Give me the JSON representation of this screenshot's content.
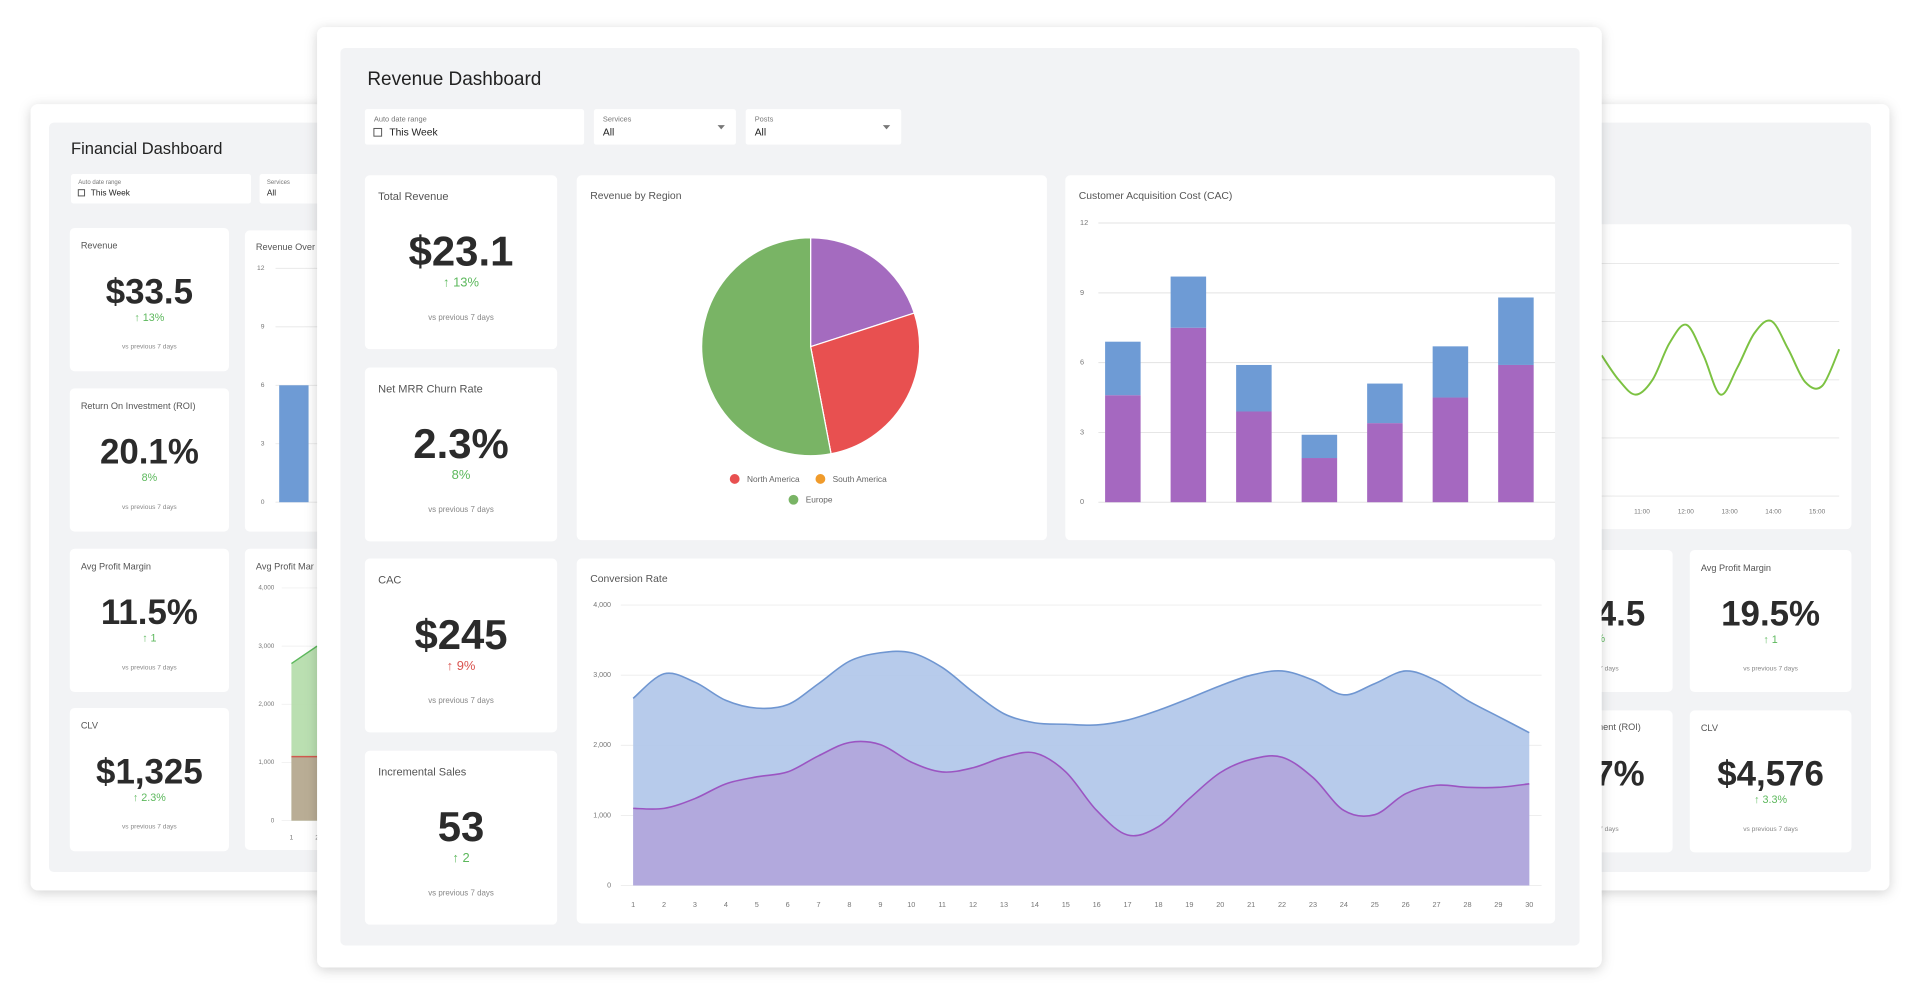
{
  "left": {
    "title": "Financial Dashboard",
    "filters": [
      {
        "label": "Auto date range",
        "value": "This Week"
      },
      {
        "label": "Services",
        "value": "All"
      }
    ],
    "kpis": [
      {
        "label": "Revenue",
        "value": "$33.5",
        "change": "↑ 13%",
        "change_color": "#5cb85c",
        "note": "vs previous 7 days"
      },
      {
        "label": "Return On Investment (ROI)",
        "value": "20.1%",
        "change": "8%",
        "change_color": "#5cb85c",
        "note": "vs previous 7 days"
      },
      {
        "label": "Avg Profit Margin",
        "value": "11.5%",
        "change": "↑ 1",
        "change_color": "#5cb85c",
        "note": "vs previous 7 days"
      },
      {
        "label": "CLV",
        "value": "$1,325",
        "change": "↑ 2.3%",
        "change_color": "#5cb85c",
        "note": "vs previous 7 days"
      }
    ],
    "bar_chart": {
      "type": "bar",
      "title": "Revenue Over",
      "ylim": [
        0,
        12
      ],
      "yticks": [
        0,
        3,
        6,
        9,
        12
      ],
      "grid": true,
      "values": [
        6
      ],
      "color": "#6e9bd5"
    },
    "area_chart": {
      "type": "area",
      "title": "Avg Profit Mar",
      "x": [
        1,
        2
      ],
      "ylim": [
        0,
        4000
      ],
      "yticks": [
        0,
        {
          "value": 1000,
          "label": "1,000"
        },
        {
          "value": 2000,
          "label": "2,000"
        },
        {
          "value": 3000,
          "label": "3,000"
        },
        {
          "value": 4000,
          "label": "4,000"
        }
      ],
      "series": [
        {
          "color": "#5cb85c",
          "fill": "#b3dba9",
          "values": [
            2700,
            3000
          ]
        },
        {
          "color": "#d05a4e",
          "fill": "#b9a792",
          "values": [
            1100,
            1100
          ]
        }
      ]
    }
  },
  "right": {
    "line_chart": {
      "type": "line",
      "xticks": [
        "11:00",
        "12:00",
        "13:00",
        "14:00",
        "15:00"
      ],
      "ylim": [
        0,
        8
      ],
      "color": "#7cc242",
      "values": [
        4.84,
        4.0,
        3.49,
        4.0,
        5.26,
        5.89,
        4.84,
        3.49,
        4.42,
        5.6,
        6.02,
        5.05,
        3.92,
        3.79,
        5.05
      ]
    },
    "kpis": [
      {
        "label": "Avg Profit Margin",
        "value": "19.5%",
        "change": "↑ 1",
        "change_color": "#5cb85c",
        "note": "vs previous 7 days"
      },
      {
        "label": "CLV",
        "value": "$4,576",
        "change": "↑ 3.3%",
        "change_color": "#5cb85c",
        "note": "vs previous 7 days"
      }
    ],
    "partial_kpis": [
      {
        "value": "4.5",
        "change": "%",
        "change_color": "#5cb85c",
        "note": "7 days"
      },
      {
        "label": "ment (ROI)",
        "value": "7%",
        "note": "7 days"
      }
    ]
  },
  "front": {
    "title": "Revenue Dashboard",
    "filters": [
      {
        "label": "Auto date range",
        "value": "This Week"
      },
      {
        "label": "Services",
        "value": "All"
      },
      {
        "label": "Posts",
        "value": "All"
      }
    ],
    "kpis": [
      {
        "label": "Total Revenue",
        "value": "$23.1",
        "change": "↑ 13%",
        "change_color": "#5cb85c",
        "note": "vs previous 7 days"
      },
      {
        "label": "Net MRR Churn Rate",
        "value": "2.3%",
        "change": "8%",
        "change_color": "#5cb85c",
        "note": "vs previous 7 days"
      },
      {
        "label": "CAC",
        "value": "$245",
        "change": "↑ 9%",
        "change_color": "#d9534f",
        "note": "vs previous 7 days"
      },
      {
        "label": "Incremental Sales",
        "value": "53",
        "change": "↑ 2",
        "change_color": "#5cb85c",
        "note": "vs previous 7 days"
      }
    ],
    "pie": {
      "type": "pie",
      "title": "Revenue  by Region",
      "categories": [
        null,
        "North America",
        "South America",
        "Europe"
      ],
      "values": [
        20,
        27,
        0,
        53
      ],
      "colors": [
        "#a46bbf",
        "#e85050",
        "#f09b2b",
        "#79b465"
      ]
    },
    "cac": {
      "type": "bar",
      "stacked": true,
      "title": "Customer Acquisition Cost (CAC)",
      "ylim": [
        0,
        12
      ],
      "yticks": [
        0,
        3,
        6,
        9,
        12
      ],
      "grid": true,
      "series": [
        {
          "color": "#a568c0",
          "values": [
            4.6,
            7.5,
            3.9,
            1.9,
            3.4,
            4.5,
            5.9
          ]
        },
        {
          "color": "#6e9bd5",
          "values": [
            2.3,
            2.2,
            2.0,
            1.0,
            1.7,
            2.2,
            2.9
          ]
        }
      ]
    },
    "conversion": {
      "type": "area",
      "title": "Conversion Rate",
      "x": [
        1,
        2,
        3,
        4,
        5,
        6,
        7,
        8,
        9,
        10,
        11,
        12,
        13,
        14,
        15,
        16,
        17,
        18,
        19,
        20,
        21,
        22,
        23,
        24,
        25,
        26,
        27,
        28,
        29,
        30
      ],
      "xlim": [
        0.6,
        30.4
      ],
      "ylim": [
        0,
        4000
      ],
      "yticks": [
        0,
        {
          "value": 1000,
          "label": "1,000"
        },
        {
          "value": 2000,
          "label": "2,000"
        },
        {
          "value": 3000,
          "label": "3,000"
        },
        {
          "value": 4000,
          "label": "4,000"
        }
      ],
      "series": [
        {
          "color": "#6f96d1",
          "fill": "#b3c8ea",
          "values": [
            2670,
            3020,
            2900,
            2640,
            2530,
            2580,
            2880,
            3200,
            3320,
            3320,
            3110,
            2760,
            2450,
            2320,
            2300,
            2290,
            2360,
            2500,
            2670,
            2850,
            3000,
            3060,
            2930,
            2720,
            2880,
            3060,
            2920,
            2640,
            2410,
            2180
          ]
        },
        {
          "color": "#9b55c2",
          "fill": "#b1a7dc",
          "values": [
            1100,
            1100,
            1240,
            1450,
            1550,
            1620,
            1850,
            2040,
            2010,
            1760,
            1620,
            1680,
            1830,
            1890,
            1620,
            1070,
            720,
            840,
            1240,
            1610,
            1800,
            1830,
            1540,
            1070,
            1010,
            1310,
            1430,
            1400,
            1400,
            1450
          ]
        }
      ]
    }
  }
}
